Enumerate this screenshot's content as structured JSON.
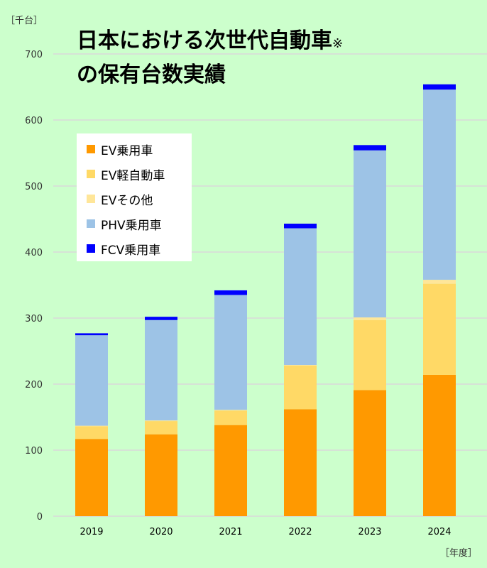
{
  "chart_data": {
    "type": "bar",
    "stacked": true,
    "title": "日本における次世代自動車",
    "title_note": "※",
    "title_line2": "の保有台数実績",
    "ylabel": "［千台］",
    "xlabel": "［年度］",
    "ylim": [
      0,
      700
    ],
    "yticks": [
      0,
      100,
      200,
      300,
      400,
      500,
      600,
      700
    ],
    "grid": true,
    "legend_position": "top-left",
    "categories": [
      "2019",
      "2020",
      "2021",
      "2022",
      "2023",
      "2024"
    ],
    "series": [
      {
        "name": "EV乗用車",
        "color": "#ff9900",
        "values": [
          117,
          124,
          138,
          162,
          191,
          214
        ]
      },
      {
        "name": "EV軽自動車",
        "color": "#ffd966",
        "values": [
          19,
          20,
          22,
          66,
          106,
          138
        ]
      },
      {
        "name": "EVその他",
        "color": "#ffe699",
        "values": [
          1,
          1,
          1,
          1,
          4,
          6
        ]
      },
      {
        "name": "PHV乗用車",
        "color": "#9dc3e6",
        "values": [
          137,
          152,
          174,
          207,
          253,
          288
        ]
      },
      {
        "name": "FCV乗用車",
        "color": "#0000ff",
        "values": [
          3,
          5,
          7,
          7,
          8,
          8
        ]
      }
    ]
  }
}
